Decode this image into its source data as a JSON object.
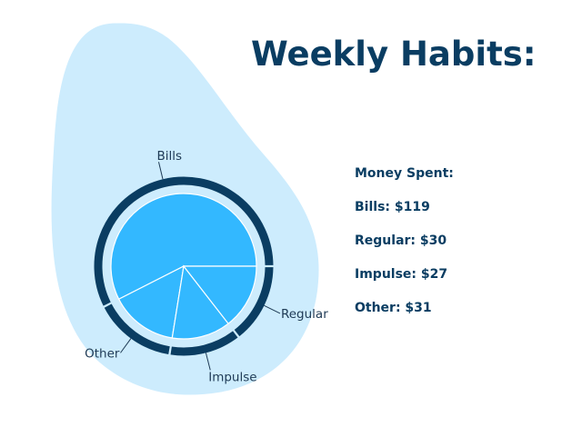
{
  "title": "Weekly Habits:",
  "summary": {
    "heading": "Money Spent:",
    "items": [
      {
        "label": "Bills: $119"
      },
      {
        "label": "Regular: $30"
      },
      {
        "label": "Impulse: $27"
      },
      {
        "label": "Other: $31"
      }
    ]
  },
  "colors": {
    "blob": "#cdecfd",
    "slice_fill": "#33b8ff",
    "slice_stroke": "#ffffff",
    "ring": "#0a3d62",
    "title": "#0a3d62"
  },
  "chart_data": {
    "type": "pie",
    "categories": [
      "Bills",
      "Other",
      "Impulse",
      "Regular"
    ],
    "values": [
      119,
      31,
      27,
      30
    ],
    "title": "",
    "xlabel": "",
    "ylabel": ""
  }
}
